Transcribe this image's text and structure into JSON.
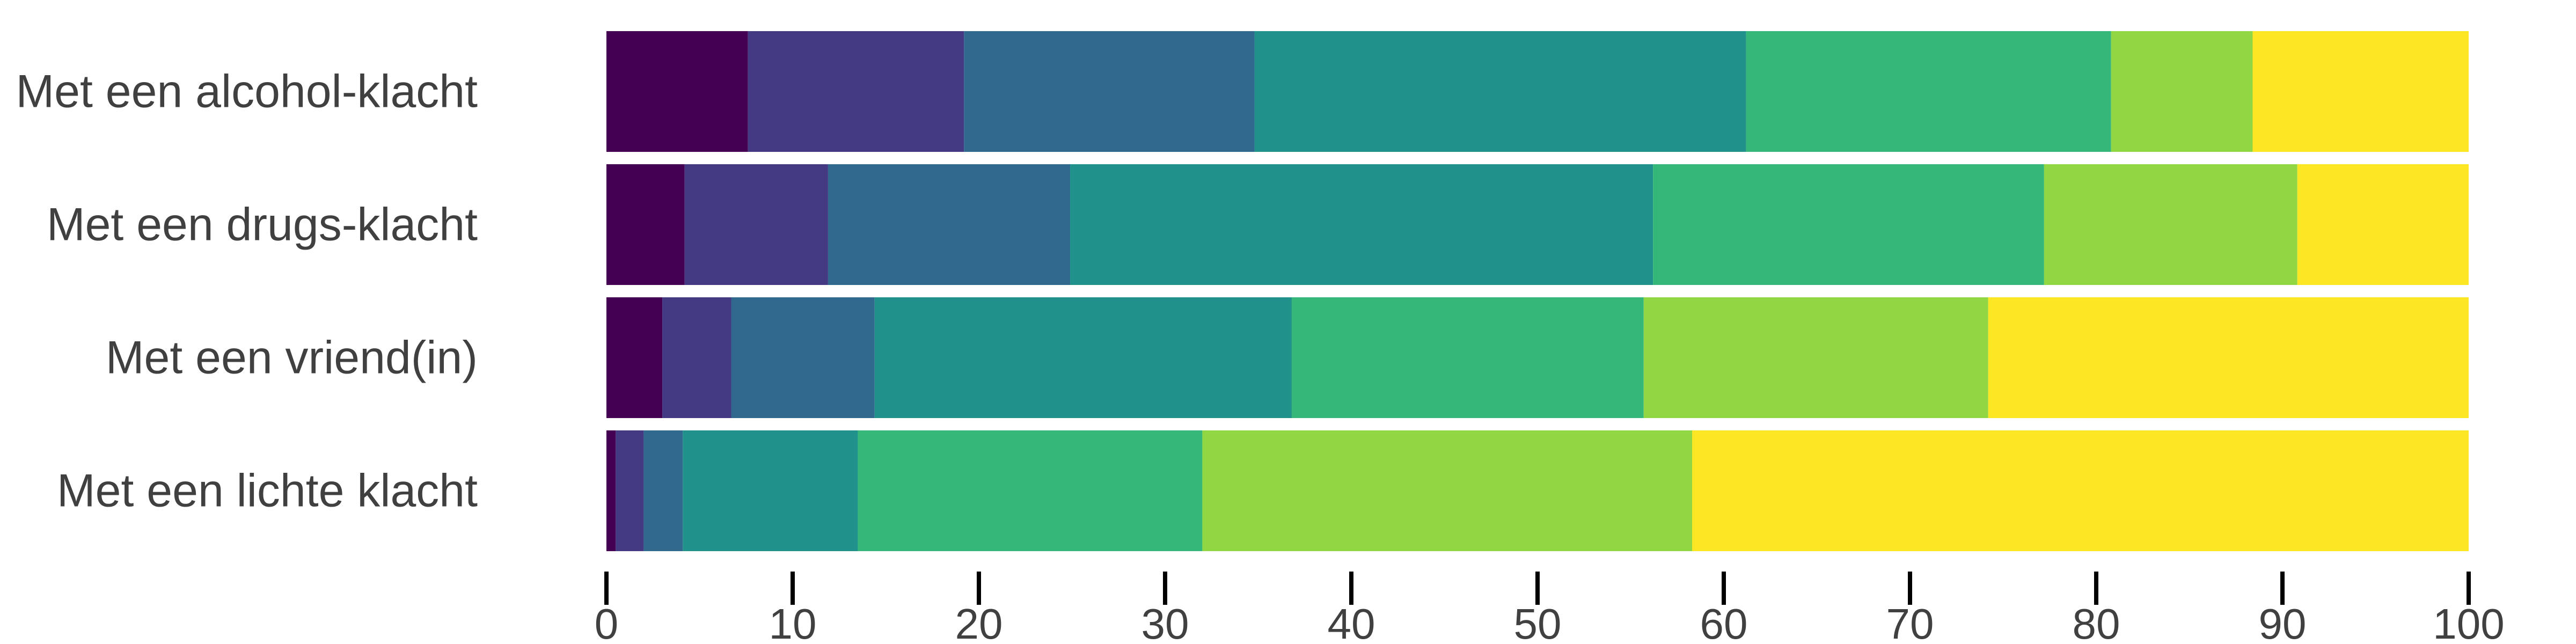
{
  "chart_data": {
    "type": "bar",
    "orientation": "horizontal",
    "stacked": true,
    "title": "",
    "xlabel": "",
    "ylabel": "",
    "xlim": [
      0,
      100
    ],
    "xticks": [
      0,
      10,
      20,
      30,
      40,
      50,
      60,
      70,
      80,
      90,
      100
    ],
    "grid": false,
    "legend": "none",
    "categories": [
      "Met een alcohol-klacht",
      "Met een drugs-klacht",
      "Met een vriend(in)",
      "Met een lichte klacht"
    ],
    "series": [
      {
        "color": "#440154",
        "values": [
          7.6,
          4.2,
          3.0,
          0.5
        ]
      },
      {
        "color": "#443983",
        "values": [
          11.6,
          7.7,
          3.7,
          1.5
        ]
      },
      {
        "color": "#31688e",
        "values": [
          15.6,
          13.0,
          7.7,
          2.1
        ]
      },
      {
        "color": "#21918c",
        "values": [
          26.4,
          31.3,
          22.4,
          9.4
        ]
      },
      {
        "color": "#35b779",
        "values": [
          19.6,
          21.0,
          18.9,
          18.5
        ]
      },
      {
        "color": "#90d743",
        "values": [
          7.6,
          13.6,
          18.5,
          26.3
        ]
      },
      {
        "color": "#fde725",
        "values": [
          11.6,
          9.2,
          25.8,
          41.7
        ]
      }
    ]
  }
}
